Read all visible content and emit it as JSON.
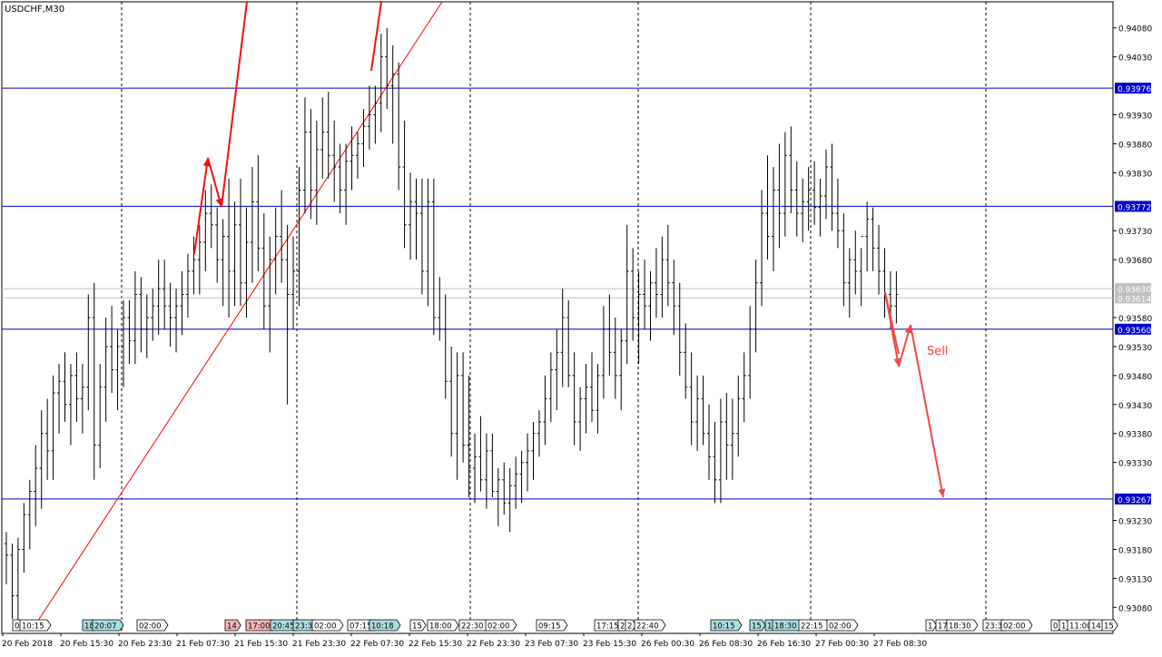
{
  "window_title": "USDCHF,M30",
  "chart_data": {
    "type": "candlestick",
    "symbol": "USDCHF",
    "timeframe": "M30",
    "ylim": [
      0.93035,
      0.94125
    ],
    "price_ticks": [
      0.9408,
      0.9403,
      0.9393,
      0.9388,
      0.9383,
      0.9373,
      0.9368,
      0.9358,
      0.9353,
      0.9348,
      0.9343,
      0.9338,
      0.9333,
      0.9323,
      0.9318,
      0.9313,
      0.9308
    ],
    "time_labels": [
      "20 Feb 2018",
      "20 Feb 15:30",
      "20 Feb 23:30",
      "21 Feb 07:30",
      "21 Feb 15:30",
      "21 Feb 23:30",
      "22 Feb 07:30",
      "22 Feb 15:30",
      "22 Feb 23:30",
      "23 Feb 07:30",
      "23 Feb 15:30",
      "26 Feb 00:30",
      "26 Feb 08:30",
      "26 Feb 16:30",
      "27 Feb 00:30",
      "27 Feb 08:30"
    ],
    "horizontal_levels": [
      {
        "price": 0.93976,
        "label": "0.93976",
        "color": "#0000cc"
      },
      {
        "price": 0.93772,
        "label": "0.93772",
        "color": "#0000cc"
      },
      {
        "price": 0.9356,
        "label": "0.93560",
        "color": "#0000cc"
      },
      {
        "price": 0.93267,
        "label": "0.93267",
        "color": "#0000cc"
      }
    ],
    "price_markers": [
      {
        "price": 0.9363,
        "label": "0.93630",
        "color": "#c0c0c0"
      },
      {
        "price": 0.93614,
        "label": "0.93614",
        "color": "#c0c0c0"
      }
    ],
    "annotation": {
      "text": "Sell",
      "color": "#ff3b3b"
    },
    "event_tags": [
      {
        "text": "0",
        "color": "#ffffff"
      },
      {
        "text": "10:15",
        "color": "#ffffff"
      },
      {
        "text": "18",
        "color": "#a9dfe3"
      },
      {
        "text": "20:07",
        "color": "#a9dfe3"
      },
      {
        "text": "02:00",
        "color": "#ffffff"
      },
      {
        "text": "14",
        "color": "#f4b6b6"
      },
      {
        "text": "17:00",
        "color": "#f4b6b6"
      },
      {
        "text": "20:45",
        "color": "#a9dfe3"
      },
      {
        "text": "23:3",
        "color": "#a9dfe3"
      },
      {
        "text": "02:00",
        "color": "#ffffff"
      },
      {
        "text": "07:15",
        "color": "#ffffff"
      },
      {
        "text": "10:18",
        "color": "#a9dfe3"
      },
      {
        "text": "15",
        "color": "#ffffff"
      },
      {
        "text": "18:00",
        "color": "#ffffff"
      },
      {
        "text": "22:30",
        "color": "#ffffff"
      },
      {
        "text": "02:00",
        "color": "#ffffff"
      },
      {
        "text": "09:15",
        "color": "#ffffff"
      },
      {
        "text": "17:15",
        "color": "#ffffff"
      },
      {
        "text": "2",
        "color": "#ffffff"
      },
      {
        "text": "2",
        "color": "#ffffff"
      },
      {
        "text": "22:40",
        "color": "#ffffff"
      },
      {
        "text": "10:15",
        "color": "#a9dfe3"
      },
      {
        "text": "15",
        "color": "#a9dfe3"
      },
      {
        "text": "1",
        "color": "#a9dfe3"
      },
      {
        "text": "18:30",
        "color": "#a9dfe3"
      },
      {
        "text": "22:15",
        "color": "#ffffff"
      },
      {
        "text": "02:00",
        "color": "#ffffff"
      },
      {
        "text": "1",
        "color": "#ffffff"
      },
      {
        "text": "17",
        "color": "#ffffff"
      },
      {
        "text": "18:30",
        "color": "#ffffff"
      },
      {
        "text": "23:3",
        "color": "#ffffff"
      },
      {
        "text": "02:00",
        "color": "#ffffff"
      },
      {
        "text": "0",
        "color": "#ffffff"
      },
      {
        "text": "1",
        "color": "#ffffff"
      },
      {
        "text": "11:00",
        "color": "#ffffff"
      },
      {
        "text": "14",
        "color": "#ffffff"
      },
      {
        "text": "15",
        "color": "#ffffff"
      }
    ],
    "bars": [
      [
        0.9319,
        0.9321,
        0.9312,
        0.9317
      ],
      [
        0.9317,
        0.9319,
        0.9306,
        0.931
      ],
      [
        0.931,
        0.932,
        0.9305,
        0.9318
      ],
      [
        0.9318,
        0.9326,
        0.9314,
        0.9324
      ],
      [
        0.9324,
        0.933,
        0.9318,
        0.9328
      ],
      [
        0.9328,
        0.9336,
        0.9322,
        0.9332
      ],
      [
        0.9332,
        0.9342,
        0.9325,
        0.9338
      ],
      [
        0.9338,
        0.9344,
        0.933,
        0.9335
      ],
      [
        0.9335,
        0.9348,
        0.933,
        0.9345
      ],
      [
        0.9345,
        0.935,
        0.9338,
        0.9347
      ],
      [
        0.9347,
        0.9352,
        0.934,
        0.9343
      ],
      [
        0.9343,
        0.935,
        0.9336,
        0.9348
      ],
      [
        0.9348,
        0.9352,
        0.934,
        0.9344
      ],
      [
        0.9344,
        0.935,
        0.9338,
        0.9346
      ],
      [
        0.9346,
        0.9362,
        0.9342,
        0.9358
      ],
      [
        0.9358,
        0.9364,
        0.933,
        0.9336
      ],
      [
        0.9336,
        0.935,
        0.9332,
        0.9346
      ],
      [
        0.9346,
        0.9358,
        0.934,
        0.9353
      ],
      [
        0.9353,
        0.936,
        0.9345,
        0.9349
      ],
      [
        0.9349,
        0.9356,
        0.9342,
        0.9353
      ],
      [
        0.9353,
        0.9361,
        0.9346,
        0.9358
      ],
      [
        0.9358,
        0.9361,
        0.935,
        0.9354
      ],
      [
        0.9354,
        0.9366,
        0.935,
        0.9362
      ],
      [
        0.9362,
        0.9365,
        0.9352,
        0.9356
      ],
      [
        0.9356,
        0.9362,
        0.9351,
        0.9358
      ],
      [
        0.9358,
        0.9363,
        0.9354,
        0.936
      ],
      [
        0.936,
        0.9368,
        0.9355,
        0.9363
      ],
      [
        0.9363,
        0.9368,
        0.9356,
        0.936
      ],
      [
        0.936,
        0.9364,
        0.9353,
        0.9358
      ],
      [
        0.9358,
        0.9363,
        0.9352,
        0.936
      ],
      [
        0.936,
        0.9366,
        0.9355,
        0.9362
      ],
      [
        0.9362,
        0.9369,
        0.9358,
        0.9366
      ],
      [
        0.9366,
        0.9372,
        0.9362,
        0.9368
      ],
      [
        0.9368,
        0.9374,
        0.9362,
        0.9371
      ],
      [
        0.9371,
        0.938,
        0.9366,
        0.9376
      ],
      [
        0.9376,
        0.9381,
        0.937,
        0.9374
      ],
      [
        0.9374,
        0.9377,
        0.9364,
        0.9368
      ],
      [
        0.9368,
        0.9375,
        0.936,
        0.9372
      ],
      [
        0.9372,
        0.9382,
        0.9358,
        0.9366
      ],
      [
        0.9366,
        0.9378,
        0.936,
        0.9374
      ],
      [
        0.9374,
        0.9382,
        0.936,
        0.9364
      ],
      [
        0.9364,
        0.9377,
        0.9358,
        0.9371
      ],
      [
        0.9371,
        0.9384,
        0.9364,
        0.9378
      ],
      [
        0.9378,
        0.9386,
        0.9366,
        0.937
      ],
      [
        0.937,
        0.9376,
        0.9356,
        0.936
      ],
      [
        0.936,
        0.9372,
        0.9352,
        0.9368
      ],
      [
        0.9368,
        0.9377,
        0.9362,
        0.9372
      ],
      [
        0.9372,
        0.938,
        0.9364,
        0.9368
      ],
      [
        0.9368,
        0.9374,
        0.9343,
        0.9362
      ],
      [
        0.9362,
        0.9372,
        0.9356,
        0.9366
      ],
      [
        0.9366,
        0.9384,
        0.936,
        0.938
      ],
      [
        0.938,
        0.9396,
        0.9376,
        0.939
      ],
      [
        0.939,
        0.9394,
        0.9375,
        0.938
      ],
      [
        0.938,
        0.9392,
        0.9374,
        0.9387
      ],
      [
        0.9387,
        0.9396,
        0.9382,
        0.939
      ],
      [
        0.939,
        0.9397,
        0.9382,
        0.9386
      ],
      [
        0.9386,
        0.9392,
        0.9378,
        0.9384
      ],
      [
        0.9384,
        0.9388,
        0.9376,
        0.938
      ],
      [
        0.938,
        0.9388,
        0.9374,
        0.9385
      ],
      [
        0.9385,
        0.9391,
        0.938,
        0.9386
      ],
      [
        0.9386,
        0.939,
        0.9382,
        0.9388
      ],
      [
        0.9388,
        0.9394,
        0.9384,
        0.9391
      ],
      [
        0.9391,
        0.9398,
        0.9387,
        0.9393
      ],
      [
        0.9393,
        0.9398,
        0.9388,
        0.9395
      ],
      [
        0.9395,
        0.9407,
        0.939,
        0.9403
      ],
      [
        0.9403,
        0.9408,
        0.9394,
        0.9398
      ],
      [
        0.9398,
        0.9405,
        0.9388,
        0.94
      ],
      [
        0.94,
        0.9402,
        0.938,
        0.9384
      ],
      [
        0.9384,
        0.9392,
        0.937,
        0.9374
      ],
      [
        0.9374,
        0.9383,
        0.9368,
        0.9378
      ],
      [
        0.9378,
        0.9382,
        0.9368,
        0.9376
      ],
      [
        0.9376,
        0.9382,
        0.9362,
        0.9366
      ],
      [
        0.9366,
        0.9382,
        0.936,
        0.9378
      ],
      [
        0.9378,
        0.9382,
        0.9355,
        0.9358
      ],
      [
        0.9358,
        0.9365,
        0.9354,
        0.9356
      ],
      [
        0.9356,
        0.9362,
        0.9344,
        0.9347
      ],
      [
        0.9347,
        0.9353,
        0.9334,
        0.9338
      ],
      [
        0.9338,
        0.9352,
        0.933,
        0.9348
      ],
      [
        0.9348,
        0.9352,
        0.9333,
        0.9336
      ],
      [
        0.9336,
        0.9348,
        0.9327,
        0.9332
      ],
      [
        0.9332,
        0.9338,
        0.9326,
        0.9334
      ],
      [
        0.9334,
        0.9341,
        0.9328,
        0.933
      ],
      [
        0.933,
        0.9338,
        0.9325,
        0.9335
      ],
      [
        0.9335,
        0.9338,
        0.9327,
        0.9328
      ],
      [
        0.9328,
        0.9332,
        0.9322,
        0.933
      ],
      [
        0.933,
        0.9333,
        0.9324,
        0.9326
      ],
      [
        0.9326,
        0.9332,
        0.9321,
        0.9329
      ],
      [
        0.9329,
        0.9334,
        0.9325,
        0.9331
      ],
      [
        0.9331,
        0.9335,
        0.9326,
        0.9333
      ],
      [
        0.9333,
        0.9338,
        0.9328,
        0.9335
      ],
      [
        0.9335,
        0.934,
        0.933,
        0.9338
      ],
      [
        0.9338,
        0.9342,
        0.9334,
        0.934
      ],
      [
        0.934,
        0.9348,
        0.9336,
        0.9344
      ],
      [
        0.9344,
        0.9352,
        0.934,
        0.9349
      ],
      [
        0.9349,
        0.9356,
        0.9342,
        0.9352
      ],
      [
        0.9352,
        0.9363,
        0.9346,
        0.9358
      ],
      [
        0.9358,
        0.9361,
        0.9346,
        0.9348
      ],
      [
        0.9348,
        0.9352,
        0.9336,
        0.934
      ],
      [
        0.934,
        0.9346,
        0.9335,
        0.9344
      ],
      [
        0.9344,
        0.935,
        0.9338,
        0.9346
      ],
      [
        0.9346,
        0.9352,
        0.934,
        0.9342
      ],
      [
        0.9342,
        0.935,
        0.9338,
        0.9348
      ],
      [
        0.9348,
        0.936,
        0.9344,
        0.9356
      ],
      [
        0.9356,
        0.9362,
        0.9348,
        0.9352
      ],
      [
        0.9352,
        0.9358,
        0.9344,
        0.9348
      ],
      [
        0.9348,
        0.9356,
        0.9342,
        0.9354
      ],
      [
        0.9354,
        0.9374,
        0.935,
        0.9366
      ],
      [
        0.9366,
        0.937,
        0.9354,
        0.9358
      ],
      [
        0.9358,
        0.9366,
        0.935,
        0.9362
      ],
      [
        0.9362,
        0.9368,
        0.9356,
        0.936
      ],
      [
        0.936,
        0.9366,
        0.9354,
        0.9364
      ],
      [
        0.9364,
        0.937,
        0.9358,
        0.9362
      ],
      [
        0.9362,
        0.9372,
        0.9358,
        0.9368
      ],
      [
        0.9368,
        0.9374,
        0.936,
        0.9364
      ],
      [
        0.9364,
        0.9368,
        0.9355,
        0.936
      ],
      [
        0.936,
        0.9364,
        0.9348,
        0.9352
      ],
      [
        0.9352,
        0.9357,
        0.9344,
        0.9346
      ],
      [
        0.9346,
        0.9352,
        0.9336,
        0.934
      ],
      [
        0.934,
        0.9348,
        0.9335,
        0.9344
      ],
      [
        0.9344,
        0.9348,
        0.9336,
        0.9338
      ],
      [
        0.9338,
        0.9343,
        0.933,
        0.9334
      ],
      [
        0.9334,
        0.934,
        0.9326,
        0.933
      ],
      [
        0.933,
        0.9344,
        0.9326,
        0.934
      ],
      [
        0.934,
        0.9345,
        0.933,
        0.9336
      ],
      [
        0.9336,
        0.9344,
        0.933,
        0.9338
      ],
      [
        0.9338,
        0.9348,
        0.9334,
        0.9344
      ],
      [
        0.9344,
        0.9352,
        0.934,
        0.9348
      ],
      [
        0.9348,
        0.936,
        0.9344,
        0.9356
      ],
      [
        0.9356,
        0.9368,
        0.9352,
        0.9364
      ],
      [
        0.9364,
        0.938,
        0.936,
        0.9376
      ],
      [
        0.9376,
        0.9386,
        0.9368,
        0.9372
      ],
      [
        0.9372,
        0.9384,
        0.9366,
        0.938
      ],
      [
        0.938,
        0.9388,
        0.937,
        0.9376
      ],
      [
        0.9376,
        0.939,
        0.9372,
        0.9386
      ],
      [
        0.9386,
        0.9391,
        0.9376,
        0.938
      ],
      [
        0.938,
        0.9385,
        0.9372,
        0.9376
      ],
      [
        0.9376,
        0.9382,
        0.9371,
        0.9378
      ],
      [
        0.9378,
        0.9384,
        0.9373,
        0.938
      ],
      [
        0.938,
        0.9385,
        0.9374,
        0.9377
      ],
      [
        0.9377,
        0.9382,
        0.9372,
        0.9379
      ],
      [
        0.9379,
        0.9387,
        0.9375,
        0.9384
      ],
      [
        0.9384,
        0.9388,
        0.9373,
        0.9376
      ],
      [
        0.9376,
        0.9382,
        0.937,
        0.9373
      ],
      [
        0.9373,
        0.9376,
        0.936,
        0.9364
      ],
      [
        0.9364,
        0.937,
        0.9358,
        0.9368
      ],
      [
        0.9368,
        0.9373,
        0.9362,
        0.9366
      ],
      [
        0.9366,
        0.937,
        0.936,
        0.9372
      ],
      [
        0.9372,
        0.9378,
        0.9366,
        0.9375
      ],
      [
        0.9375,
        0.9377,
        0.9366,
        0.937
      ],
      [
        0.937,
        0.9374,
        0.9362,
        0.9366
      ],
      [
        0.9366,
        0.937,
        0.9358,
        0.9362
      ],
      [
        0.9362,
        0.9366,
        0.9356,
        0.936
      ],
      [
        0.936,
        0.9366,
        0.9357,
        0.9362
      ]
    ]
  }
}
